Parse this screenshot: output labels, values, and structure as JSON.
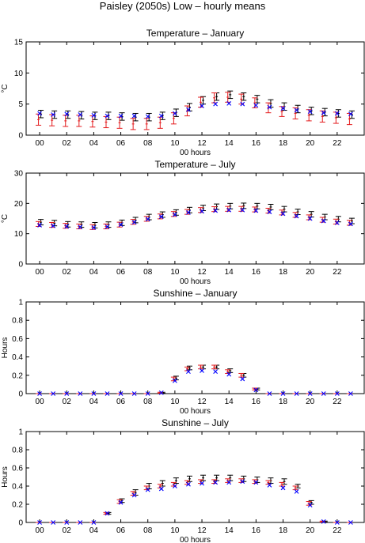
{
  "page": {
    "title": "Paisley (2050s) Low – hourly means"
  },
  "colors": {
    "black_series": "#000000",
    "red_series": "#e41a1c",
    "blue_series": "#0000ff",
    "axis": "#000000"
  },
  "chart_data": [
    {
      "type": "scatter",
      "title": "Temperature – January",
      "xlabel": "00 hours",
      "ylabel": "°C",
      "x": [
        0,
        1,
        2,
        3,
        4,
        5,
        6,
        7,
        8,
        9,
        10,
        11,
        12,
        13,
        14,
        15,
        16,
        17,
        18,
        19,
        20,
        21,
        22,
        23
      ],
      "xlim": [
        -1,
        24
      ],
      "ylim": [
        0,
        15
      ],
      "xticks": [
        "00",
        "02",
        "04",
        "06",
        "08",
        "10",
        "12",
        "14",
        "16",
        "18",
        "20",
        "22"
      ],
      "yticks": [
        0,
        5,
        10,
        15
      ],
      "series": [
        {
          "marker": "errorbar",
          "color": "#000000",
          "values": [
            3.4,
            3.3,
            3.3,
            3.2,
            3.1,
            3.1,
            3.0,
            2.9,
            2.9,
            3.1,
            3.6,
            4.5,
            5.6,
            6.2,
            6.5,
            6.2,
            5.8,
            5.1,
            4.6,
            4.2,
            3.9,
            3.7,
            3.5,
            3.3
          ],
          "err": [
            0.6,
            0.6,
            0.6,
            0.6,
            0.6,
            0.6,
            0.6,
            0.6,
            0.6,
            0.6,
            0.6,
            0.6,
            0.6,
            0.6,
            0.6,
            0.6,
            0.6,
            0.6,
            0.6,
            0.6,
            0.6,
            0.6,
            0.6,
            0.6
          ]
        },
        {
          "marker": "errorbar",
          "color": "#e41a1c",
          "values": [
            2.5,
            2.4,
            2.3,
            2.3,
            2.2,
            2.1,
            2.0,
            1.8,
            1.8,
            2.0,
            2.7,
            3.9,
            5.3,
            6.0,
            6.1,
            5.8,
            5.2,
            4.4,
            3.8,
            3.5,
            3.2,
            3.0,
            2.8,
            2.6
          ],
          "err": [
            0.9,
            0.9,
            0.9,
            0.9,
            0.9,
            0.9,
            0.9,
            0.9,
            0.9,
            0.9,
            0.9,
            0.8,
            0.8,
            0.8,
            0.8,
            0.8,
            0.8,
            0.8,
            0.8,
            0.9,
            0.9,
            0.9,
            0.9,
            0.9
          ]
        },
        {
          "marker": "x",
          "color": "#0000ff",
          "values": [
            3.5,
            3.3,
            3.4,
            3.3,
            3.2,
            3.1,
            3.1,
            3.1,
            3.0,
            3.1,
            3.5,
            4.1,
            4.7,
            5.0,
            5.1,
            5.0,
            4.8,
            4.5,
            4.3,
            4.0,
            3.8,
            3.6,
            3.5,
            3.4
          ]
        }
      ]
    },
    {
      "type": "scatter",
      "title": "Temperature – July",
      "xlabel": "00 hours",
      "ylabel": "°C",
      "x": [
        0,
        1,
        2,
        3,
        4,
        5,
        6,
        7,
        8,
        9,
        10,
        11,
        12,
        13,
        14,
        15,
        16,
        17,
        18,
        19,
        20,
        21,
        22,
        23
      ],
      "xlim": [
        -1,
        24
      ],
      "ylim": [
        0,
        30
      ],
      "xticks": [
        "00",
        "02",
        "04",
        "06",
        "08",
        "10",
        "12",
        "14",
        "16",
        "18",
        "20",
        "22"
      ],
      "yticks": [
        0,
        10,
        20,
        30
      ],
      "series": [
        {
          "marker": "errorbar",
          "color": "#000000",
          "values": [
            13.8,
            13.5,
            13.1,
            13.0,
            12.8,
            13.0,
            13.6,
            14.5,
            15.5,
            16.3,
            17.0,
            17.8,
            18.5,
            18.9,
            19.1,
            19.2,
            19.1,
            18.8,
            18.1,
            17.2,
            16.4,
            15.5,
            14.8,
            14.2
          ],
          "err": [
            0.9,
            0.9,
            0.9,
            0.9,
            0.9,
            0.9,
            0.9,
            0.9,
            0.9,
            0.9,
            0.9,
            0.9,
            0.9,
            0.9,
            0.9,
            0.9,
            0.9,
            0.9,
            0.9,
            0.9,
            0.9,
            0.9,
            0.9,
            0.9
          ]
        },
        {
          "marker": "errorbar",
          "color": "#e41a1c",
          "values": [
            13.2,
            12.9,
            12.6,
            12.4,
            12.2,
            12.4,
            13.0,
            13.9,
            14.9,
            15.7,
            16.5,
            17.2,
            17.8,
            18.1,
            18.2,
            18.2,
            18.0,
            17.6,
            17.0,
            16.2,
            15.4,
            14.6,
            14.0,
            13.6
          ],
          "err": [
            0.8,
            0.8,
            0.8,
            0.8,
            0.8,
            0.8,
            0.8,
            0.8,
            0.8,
            0.8,
            0.8,
            0.8,
            0.8,
            0.8,
            0.8,
            0.8,
            0.8,
            0.8,
            0.8,
            0.8,
            0.8,
            0.8,
            0.8,
            0.8
          ]
        },
        {
          "marker": "x",
          "color": "#0000ff",
          "values": [
            12.8,
            12.6,
            12.4,
            12.2,
            12.0,
            12.3,
            13.0,
            13.8,
            14.8,
            15.6,
            16.3,
            17.0,
            17.4,
            17.6,
            17.8,
            17.8,
            17.6,
            17.2,
            16.6,
            15.8,
            15.0,
            14.2,
            13.6,
            13.2
          ]
        }
      ]
    },
    {
      "type": "scatter",
      "title": "Sunshine – January",
      "xlabel": "00 hours",
      "ylabel": "Hours",
      "x": [
        0,
        1,
        2,
        3,
        4,
        5,
        6,
        7,
        8,
        9,
        10,
        11,
        12,
        13,
        14,
        15,
        16,
        17,
        18,
        19,
        20,
        21,
        22,
        23
      ],
      "xlim": [
        -1,
        24
      ],
      "ylim": [
        0,
        1
      ],
      "xticks": [
        "00",
        "02",
        "04",
        "06",
        "08",
        "10",
        "12",
        "14",
        "16",
        "18",
        "20",
        "22"
      ],
      "yticks": [
        0,
        0.2,
        0.4,
        0.6,
        0.8,
        1
      ],
      "series": [
        {
          "marker": "errorbar",
          "color": "#000000",
          "values": [
            0,
            0,
            0,
            0,
            0,
            0,
            0,
            0,
            0,
            0.01,
            0.17,
            0.28,
            0.29,
            0.29,
            0.25,
            0.2,
            0.05,
            0,
            0,
            0,
            0,
            0,
            0,
            0
          ],
          "err": [
            0,
            0,
            0,
            0,
            0,
            0,
            0,
            0,
            0,
            0.005,
            0.02,
            0.02,
            0.02,
            0.02,
            0.02,
            0.02,
            0.01,
            0,
            0,
            0,
            0,
            0,
            0,
            0
          ]
        },
        {
          "marker": "errorbar",
          "color": "#e41a1c",
          "values": [
            0,
            0,
            0,
            0,
            0,
            0,
            0,
            0,
            0,
            0.01,
            0.16,
            0.27,
            0.29,
            0.29,
            0.24,
            0.2,
            0.05,
            0,
            0,
            0,
            0,
            0,
            0,
            0
          ],
          "err": [
            0,
            0,
            0,
            0,
            0,
            0,
            0,
            0,
            0,
            0.005,
            0.02,
            0.02,
            0.02,
            0.02,
            0.02,
            0.02,
            0.01,
            0,
            0,
            0,
            0,
            0,
            0,
            0
          ]
        },
        {
          "marker": "x",
          "color": "#0000ff",
          "values": [
            0,
            0,
            0,
            0,
            0,
            0,
            0,
            0,
            0,
            0.01,
            0.14,
            0.24,
            0.25,
            0.24,
            0.21,
            0.16,
            0.04,
            0,
            0,
            0,
            0,
            0,
            0,
            0
          ]
        }
      ]
    },
    {
      "type": "scatter",
      "title": "Sunshine – July",
      "xlabel": "00 hours",
      "ylabel": "Hours",
      "x": [
        0,
        1,
        2,
        3,
        4,
        5,
        6,
        7,
        8,
        9,
        10,
        11,
        12,
        13,
        14,
        15,
        16,
        17,
        18,
        19,
        20,
        21,
        22,
        23
      ],
      "xlim": [
        -1,
        24
      ],
      "ylim": [
        0,
        1
      ],
      "xticks": [
        "00",
        "02",
        "04",
        "06",
        "08",
        "10",
        "12",
        "14",
        "16",
        "18",
        "20",
        "22"
      ],
      "yticks": [
        0,
        0.2,
        0.4,
        0.6,
        0.8,
        1
      ],
      "series": [
        {
          "marker": "errorbar",
          "color": "#000000",
          "values": [
            0,
            0,
            0,
            0,
            0,
            0.1,
            0.24,
            0.33,
            0.4,
            0.43,
            0.46,
            0.48,
            0.49,
            0.49,
            0.49,
            0.48,
            0.47,
            0.46,
            0.45,
            0.4,
            0.22,
            0.01,
            0,
            0
          ],
          "err": [
            0,
            0,
            0,
            0,
            0,
            0.01,
            0.02,
            0.03,
            0.03,
            0.03,
            0.03,
            0.03,
            0.03,
            0.03,
            0.03,
            0.03,
            0.03,
            0.03,
            0.03,
            0.02,
            0.02,
            0.005,
            0,
            0
          ]
        },
        {
          "marker": "errorbar",
          "color": "#e41a1c",
          "values": [
            0,
            0,
            0,
            0,
            0,
            0.1,
            0.23,
            0.32,
            0.38,
            0.4,
            0.42,
            0.44,
            0.45,
            0.45,
            0.46,
            0.46,
            0.45,
            0.44,
            0.42,
            0.38,
            0.21,
            0.01,
            0,
            0
          ],
          "err": [
            0,
            0,
            0,
            0,
            0,
            0.01,
            0.02,
            0.02,
            0.02,
            0.02,
            0.02,
            0.02,
            0.02,
            0.02,
            0.02,
            0.02,
            0.02,
            0.02,
            0.02,
            0.02,
            0.02,
            0.005,
            0,
            0
          ]
        },
        {
          "marker": "x",
          "color": "#0000ff",
          "values": [
            0,
            0,
            0,
            0,
            0,
            0.1,
            0.22,
            0.3,
            0.36,
            0.37,
            0.4,
            0.42,
            0.43,
            0.44,
            0.44,
            0.45,
            0.44,
            0.41,
            0.38,
            0.34,
            0.19,
            0.01,
            0,
            0
          ]
        }
      ]
    }
  ]
}
